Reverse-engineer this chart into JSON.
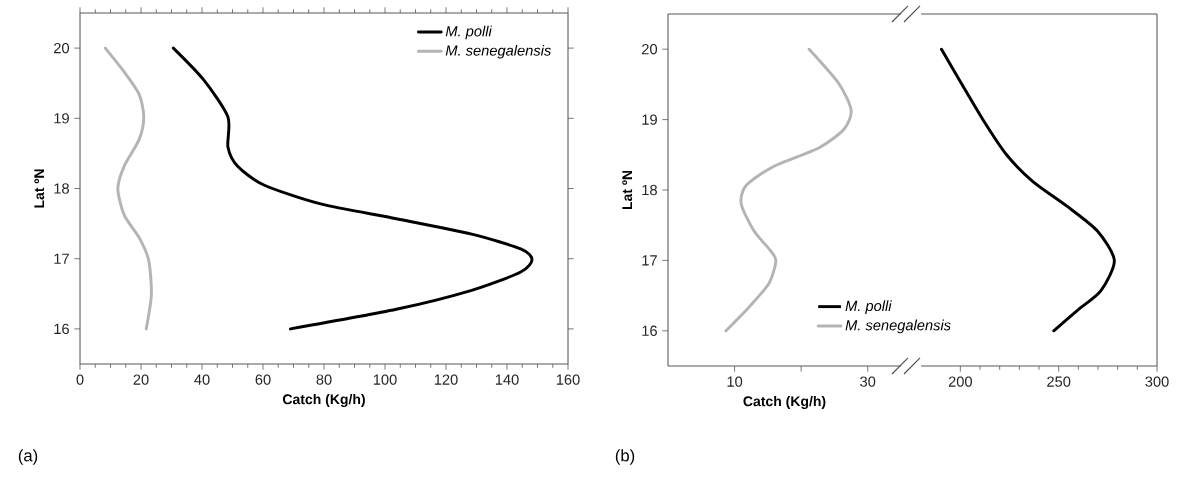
{
  "chart_data": [
    {
      "type": "line",
      "xlabel": "Catch (Kg/h)",
      "ylabel": "Lat ºN",
      "xlim": [
        0,
        160
      ],
      "xticks": [
        0,
        20,
        40,
        60,
        80,
        100,
        120,
        140,
        160
      ],
      "ylim": [
        15.5,
        20.5
      ],
      "yticks": [
        16,
        17,
        18,
        19,
        20
      ],
      "legend": "top right",
      "grid": false,
      "annotations": [
        "(a)"
      ],
      "series": [
        {
          "name": "M. polli",
          "color": "#000000",
          "x": [
            30.6,
            40.5,
            48.5,
            48.5,
            51.6,
            60.3,
            78.9,
            103.7,
            128.4,
            144.5,
            148.2,
            144.5,
            128.4,
            103.7,
            69
          ],
          "values": [
            20,
            19.55,
            19.02,
            18.59,
            18.32,
            18.05,
            17.78,
            17.57,
            17.35,
            17.14,
            16.99,
            16.81,
            16.55,
            16.28,
            16
          ]
        },
        {
          "name": "M. senegalensis",
          "color": "#b4b4b4",
          "x": [
            8.3,
            14.5,
            19.4,
            20.9,
            19.4,
            14.5,
            12.4,
            14.5,
            19.4,
            22.5,
            23.4,
            21.7
          ],
          "values": [
            20,
            19.66,
            19.34,
            19.02,
            18.7,
            18.32,
            18.0,
            17.62,
            17.3,
            16.98,
            16.49,
            16
          ]
        }
      ]
    },
    {
      "type": "line",
      "xlabel": "Catch (Kg/h)",
      "ylabel": "Lat ºN",
      "xlim": [
        0,
        35
      ],
      "xticks": [
        10,
        {
          "value": 20,
          "label": null
        },
        30
      ],
      "ylim": [
        15.5,
        20.5
      ],
      "yticks": [
        16,
        17,
        18,
        19,
        20
      ],
      "legend": "bottom right",
      "grid": false,
      "annotations": [
        "(b)"
      ],
      "series": [
        {
          "name": "M. senegalensis",
          "color": "#b4b4b4",
          "x": [
            21.2,
            25.6,
            27.5,
            26.5,
            22.7,
            15.8,
            11.7,
            11.0,
            12.9,
            15.2,
            16.2,
            15.2,
            12.3,
            8.7
          ],
          "values": [
            20,
            19.52,
            19.14,
            18.87,
            18.6,
            18.33,
            18.06,
            17.8,
            17.42,
            17.16,
            17.0,
            16.68,
            16.35,
            16
          ]
        }
      ]
    },
    {
      "type": "line",
      "xlim": [
        180,
        300
      ],
      "xticks": [
        200,
        250,
        300
      ],
      "ylim": [
        15.5,
        20.5
      ],
      "yticks": [
        16,
        17,
        18,
        19,
        20
      ],
      "tick_labels": "x",
      "grid": false,
      "series": [
        {
          "name": "M. polli",
          "color": "#000000",
          "x": [
            190.4,
            200.4,
            211.9,
            223.5,
            236.9,
            254.2,
            269.6,
            278.3,
            271.5,
            260,
            247.5
          ],
          "values": [
            20,
            19.52,
            18.98,
            18.5,
            18.12,
            17.77,
            17.42,
            17.0,
            16.57,
            16.3,
            16
          ]
        }
      ]
    }
  ]
}
